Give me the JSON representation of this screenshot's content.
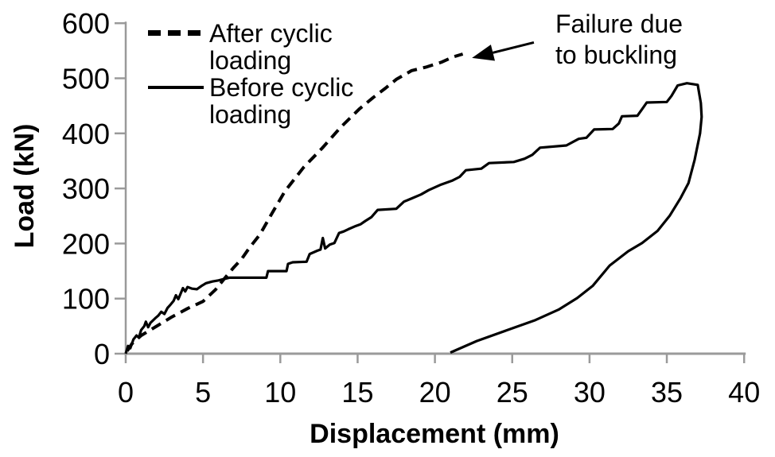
{
  "chart_data": {
    "type": "line",
    "title": "",
    "xlabel": "Displacement (mm)",
    "ylabel": "Load (kN)",
    "xlim": [
      0,
      40
    ],
    "ylim": [
      0,
      600
    ],
    "x_ticks": [
      0,
      5,
      10,
      15,
      20,
      25,
      30,
      35,
      40
    ],
    "y_ticks": [
      0,
      100,
      200,
      300,
      400,
      500,
      600
    ],
    "grid": false,
    "legend_position": "top-left-inside",
    "colors": {
      "series": "#000000",
      "axis": "#9a9a9a",
      "text": "#000000",
      "background": "#ffffff"
    },
    "series": [
      {
        "name": "After cyclic loading",
        "line_style": "dashed",
        "points": [
          [
            0.1,
            5
          ],
          [
            0.4,
            18
          ],
          [
            1,
            33
          ],
          [
            2,
            50
          ],
          [
            3,
            67
          ],
          [
            4,
            82
          ],
          [
            5,
            95
          ],
          [
            5.8,
            116
          ],
          [
            6.4,
            137
          ],
          [
            7,
            157
          ],
          [
            7.5,
            172
          ],
          [
            8,
            192
          ],
          [
            8.7,
            217
          ],
          [
            9.3,
            247
          ],
          [
            10.3,
            295
          ],
          [
            11.5,
            338
          ],
          [
            12.7,
            373
          ],
          [
            13.9,
            411
          ],
          [
            15.1,
            444
          ],
          [
            16,
            465
          ],
          [
            16.8,
            482
          ],
          [
            17.5,
            498
          ],
          [
            18.5,
            514
          ],
          [
            19.4,
            520
          ],
          [
            20.4,
            529
          ],
          [
            21.2,
            539
          ],
          [
            21.8,
            544
          ]
        ]
      },
      {
        "name": "Before cyclic loading",
        "line_style": "solid",
        "points": [
          [
            0,
            0
          ],
          [
            0.15,
            14
          ],
          [
            0.3,
            10
          ],
          [
            0.5,
            26
          ],
          [
            0.7,
            33
          ],
          [
            0.85,
            29
          ],
          [
            1.0,
            43
          ],
          [
            1.2,
            50
          ],
          [
            1.3,
            58
          ],
          [
            1.45,
            48
          ],
          [
            1.6,
            56
          ],
          [
            1.9,
            64
          ],
          [
            2.1,
            69
          ],
          [
            2.3,
            76
          ],
          [
            2.5,
            72
          ],
          [
            2.7,
            83
          ],
          [
            2.9,
            89
          ],
          [
            3.1,
            96
          ],
          [
            3.25,
            106
          ],
          [
            3.4,
            99
          ],
          [
            3.55,
            109
          ],
          [
            3.7,
            119
          ],
          [
            3.85,
            113
          ],
          [
            4.0,
            121
          ],
          [
            4.3,
            118
          ],
          [
            4.6,
            117
          ],
          [
            4.9,
            123
          ],
          [
            5.2,
            128
          ],
          [
            5.6,
            131
          ],
          [
            6.0,
            133
          ],
          [
            6.4,
            136
          ],
          [
            6.7,
            138
          ],
          [
            9.1,
            138
          ],
          [
            9.2,
            150
          ],
          [
            10.4,
            150
          ],
          [
            10.5,
            163
          ],
          [
            10.8,
            166
          ],
          [
            11.7,
            167
          ],
          [
            11.9,
            181
          ],
          [
            12.4,
            187
          ],
          [
            12.6,
            189
          ],
          [
            12.75,
            210
          ],
          [
            12.9,
            191
          ],
          [
            13.2,
            198
          ],
          [
            13.5,
            201
          ],
          [
            13.8,
            219
          ],
          [
            14.1,
            222
          ],
          [
            14.4,
            226
          ],
          [
            14.9,
            232
          ],
          [
            15.2,
            235
          ],
          [
            15.5,
            241
          ],
          [
            15.9,
            248
          ],
          [
            16.3,
            261
          ],
          [
            17.5,
            263
          ],
          [
            18.0,
            276
          ],
          [
            18.5,
            282
          ],
          [
            19.1,
            289
          ],
          [
            19.6,
            297
          ],
          [
            20.4,
            307
          ],
          [
            21.1,
            314
          ],
          [
            21.6,
            321
          ],
          [
            22.0,
            333
          ],
          [
            23.0,
            336
          ],
          [
            23.5,
            346
          ],
          [
            25.1,
            348
          ],
          [
            25.8,
            354
          ],
          [
            26.3,
            361
          ],
          [
            26.8,
            374
          ],
          [
            28.5,
            378
          ],
          [
            29.3,
            390
          ],
          [
            29.8,
            392
          ],
          [
            30.3,
            407
          ],
          [
            31.5,
            408
          ],
          [
            31.9,
            418
          ],
          [
            32.1,
            431
          ],
          [
            33.1,
            432
          ],
          [
            33.4,
            444
          ],
          [
            33.7,
            456
          ],
          [
            35.0,
            457
          ],
          [
            35.3,
            468
          ],
          [
            35.7,
            487
          ],
          [
            36.3,
            491
          ],
          [
            37.0,
            488
          ],
          [
            37.2,
            455
          ],
          [
            37.25,
            430
          ],
          [
            37.15,
            400
          ],
          [
            36.8,
            352
          ],
          [
            36.4,
            310
          ],
          [
            35.9,
            283
          ],
          [
            35.2,
            251
          ],
          [
            34.4,
            223
          ],
          [
            33.4,
            201
          ],
          [
            32.5,
            186
          ],
          [
            31.3,
            160
          ],
          [
            30.2,
            123
          ],
          [
            29.2,
            101
          ],
          [
            28.0,
            80
          ],
          [
            26.5,
            61
          ],
          [
            24.6,
            42
          ],
          [
            22.7,
            23
          ],
          [
            21.0,
            2
          ]
        ]
      }
    ],
    "annotation": {
      "text": "Failure due to buckling",
      "arrow_from": [
        26.4,
        565
      ],
      "arrow_to": [
        22.4,
        537
      ]
    }
  }
}
